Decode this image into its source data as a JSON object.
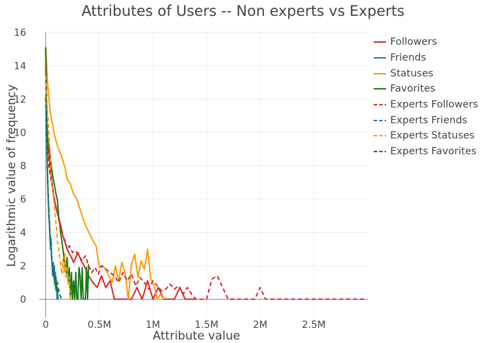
{
  "chart_data": {
    "type": "line",
    "title": "Attributes of Users -- Non experts vs Experts",
    "xlabel": "Attribute value",
    "ylabel": "Logarithmic value of frequency",
    "xlim": [
      -60000,
      3000000
    ],
    "ylim": [
      -1.1,
      16
    ],
    "xticks": [
      0,
      500000,
      1000000,
      1500000,
      2000000,
      2500000
    ],
    "xtick_labels": [
      "0",
      "0.5M",
      "1M",
      "1.5M",
      "2M",
      "2.5M"
    ],
    "yticks": [
      0,
      2,
      4,
      6,
      8,
      10,
      12,
      14,
      16
    ],
    "ytick_labels": [
      "0",
      "2",
      "4",
      "6",
      "8",
      "10",
      "12",
      "14",
      "16"
    ],
    "grid": true,
    "legend_position": "right",
    "series": [
      {
        "name": "Followers",
        "color": "#d62728",
        "dash": "solid",
        "x": [
          0,
          10000,
          20000,
          30000,
          40000,
          50000,
          60000,
          70000,
          80000,
          90000,
          100000,
          120000,
          140000,
          160000,
          180000,
          200000,
          220000,
          240000,
          260000,
          280000,
          300000,
          330000,
          360000,
          400000,
          440000,
          480000,
          520000,
          560000,
          600000,
          640000,
          680000,
          720000,
          760000,
          800000,
          850000,
          900000,
          950000,
          1000000,
          1050000,
          1100000,
          1150000,
          1200000,
          1250000,
          1300000,
          1350000,
          1400000
        ],
        "y": [
          15.1,
          10.5,
          9.3,
          8.7,
          8.0,
          7.4,
          6.9,
          6.4,
          6.0,
          5.7,
          5.4,
          4.9,
          4.4,
          3.8,
          3.4,
          3.0,
          2.7,
          2.5,
          2.2,
          2.5,
          2.8,
          2.3,
          2.0,
          1.4,
          1.0,
          0.7,
          1.4,
          0.7,
          1.1,
          0.0,
          0.0,
          0.0,
          0.0,
          0.0,
          0.7,
          0.0,
          1.1,
          0.0,
          0.7,
          0.0,
          0.0,
          0.0,
          0.7,
          0.0,
          0.0,
          0.0
        ]
      },
      {
        "name": "Friends",
        "color": "#1f77b4",
        "dash": "solid",
        "x": [
          0,
          5000,
          10000,
          15000,
          20000,
          25000,
          30000,
          35000,
          40000,
          45000,
          50000,
          55000,
          60000,
          65000,
          70000,
          75000,
          80000,
          85000,
          90000,
          95000,
          100000,
          105000,
          110000,
          115000,
          120000
        ],
        "y": [
          15.1,
          12.0,
          9.6,
          8.0,
          6.8,
          5.8,
          5.0,
          4.4,
          3.6,
          3.0,
          3.6,
          2.5,
          2.0,
          1.4,
          2.2,
          1.4,
          2.0,
          1.2,
          1.6,
          0.7,
          1.1,
          0.0,
          0.7,
          0.0,
          0.0
        ]
      },
      {
        "name": "Statuses",
        "color": "#ff9900",
        "dash": "solid",
        "x": [
          0,
          20000,
          40000,
          60000,
          80000,
          100000,
          120000,
          140000,
          160000,
          180000,
          200000,
          230000,
          260000,
          290000,
          320000,
          350000,
          380000,
          410000,
          440000,
          470000,
          500000,
          530000,
          560000,
          590000,
          620000,
          650000,
          680000,
          710000,
          740000,
          770000,
          800000,
          830000,
          860000,
          890000,
          920000,
          950000,
          980000,
          1010000,
          1040000,
          1070000,
          1100000
        ],
        "y": [
          15.1,
          12.8,
          11.3,
          10.6,
          9.9,
          9.4,
          9.0,
          8.7,
          8.3,
          7.9,
          7.2,
          6.9,
          6.3,
          6.0,
          5.4,
          4.8,
          4.3,
          3.9,
          3.5,
          3.2,
          1.9,
          2.0,
          1.8,
          1.4,
          1.0,
          2.0,
          1.1,
          2.2,
          1.6,
          0.0,
          2.1,
          2.7,
          1.3,
          2.3,
          1.8,
          3.0,
          1.2,
          0.8,
          0.0,
          0.3,
          0.0
        ]
      },
      {
        "name": "Favorites",
        "color": "#1a7a1a",
        "dash": "solid",
        "x": [
          0,
          10000,
          20000,
          30000,
          40000,
          50000,
          60000,
          70000,
          80000,
          90000,
          100000,
          110000,
          120000,
          130000,
          140000,
          150000,
          160000,
          170000,
          180000,
          190000,
          200000,
          210000,
          220000,
          230000,
          240000,
          250000,
          260000,
          270000,
          280000,
          290000,
          300000,
          310000,
          320000,
          330000,
          340000,
          350000,
          360000,
          370000,
          380000,
          390000,
          400000
        ],
        "y": [
          15.1,
          10.8,
          9.5,
          9.2,
          8.6,
          8.1,
          7.6,
          7.2,
          6.9,
          6.5,
          6.2,
          5.9,
          5.0,
          4.5,
          3.9,
          3.5,
          3.0,
          2.5,
          2.0,
          1.6,
          2.5,
          1.0,
          1.9,
          0.0,
          1.6,
          0.0,
          1.1,
          0.0,
          1.6,
          0.0,
          0.0,
          1.9,
          1.4,
          0.0,
          1.9,
          0.0,
          0.0,
          0.0,
          1.9,
          0.0,
          2.1
        ]
      },
      {
        "name": "Experts Followers",
        "color": "#d62728",
        "dash": "dashed",
        "x": [
          0,
          10000,
          20000,
          30000,
          40000,
          60000,
          80000,
          100000,
          120000,
          140000,
          160000,
          180000,
          200000,
          220000,
          250000,
          280000,
          310000,
          340000,
          370000,
          400000,
          430000,
          460000,
          490000,
          520000,
          560000,
          600000,
          640000,
          680000,
          720000,
          760000,
          800000,
          840000,
          880000,
          920000,
          960000,
          1000000,
          1040000,
          1080000,
          1120000,
          1160000,
          1200000,
          1240000,
          1280000,
          1320000,
          1360000,
          1400000,
          1450000,
          1500000,
          1550000,
          1600000,
          1650000,
          1700000,
          1750000,
          1800000,
          1850000,
          1900000,
          1950000,
          2000000,
          2050000,
          2100000,
          2200000,
          2400000,
          2600000,
          2800000,
          3000000
        ],
        "y": [
          13.9,
          10.5,
          9.0,
          8.0,
          7.5,
          6.8,
          6.0,
          5.4,
          4.8,
          4.3,
          3.8,
          3.5,
          3.0,
          3.2,
          2.8,
          2.9,
          2.6,
          2.3,
          2.6,
          2.0,
          1.6,
          1.9,
          1.5,
          2.0,
          1.8,
          1.6,
          1.4,
          1.0,
          1.6,
          1.1,
          1.5,
          0.8,
          1.3,
          1.0,
          0.6,
          1.1,
          0.8,
          0.5,
          0.6,
          0.9,
          0.6,
          0.8,
          0.3,
          0.7,
          0.3,
          0.0,
          0.0,
          0.0,
          1.2,
          1.4,
          0.7,
          0.0,
          0.0,
          0.0,
          0.0,
          0.0,
          0.0,
          0.7,
          0.0,
          0.0,
          0.0,
          0.0,
          0.0,
          0.0,
          0.0
        ]
      },
      {
        "name": "Experts Friends",
        "color": "#1f77b4",
        "dash": "dashed",
        "x": [
          0,
          5000,
          10000,
          15000,
          20000,
          25000,
          30000,
          35000,
          40000,
          45000,
          50000,
          55000,
          60000,
          65000,
          70000,
          75000,
          80000,
          85000,
          90000,
          95000,
          100000,
          105000,
          110000,
          115000,
          120000
        ],
        "y": [
          13.5,
          11.4,
          9.6,
          8.0,
          6.7,
          5.6,
          4.9,
          4.2,
          3.6,
          3.2,
          2.8,
          2.4,
          2.1,
          1.8,
          1.6,
          1.3,
          1.1,
          0.9,
          0.7,
          0.6,
          0.4,
          0.3,
          0.2,
          0.1,
          0.0
        ]
      },
      {
        "name": "Experts Statuses",
        "color": "#ff9900",
        "dash": "dashed",
        "x": [
          0,
          10000,
          20000,
          30000,
          40000,
          50000,
          60000,
          70000,
          80000,
          90000,
          100000,
          110000,
          120000,
          130000,
          140000,
          150000,
          160000,
          170000,
          180000,
          190000,
          200000,
          210000,
          220000,
          230000
        ],
        "y": [
          13.4,
          11.9,
          11.0,
          9.8,
          8.9,
          7.5,
          6.7,
          6.3,
          5.6,
          4.9,
          4.3,
          3.4,
          3.0,
          2.5,
          2.1,
          1.5,
          2.4,
          1.6,
          2.8,
          1.2,
          2.0,
          0.9,
          1.3,
          0.0
        ]
      },
      {
        "name": "Experts Favorites",
        "color": "#1a7a1a",
        "dash": "dashed",
        "x": [
          0,
          5000,
          10000,
          15000,
          20000,
          25000,
          30000,
          35000,
          40000,
          45000,
          50000,
          55000,
          60000,
          65000,
          70000,
          75000,
          80000,
          85000,
          90000,
          95000,
          100000,
          105000,
          110000,
          115000,
          120000,
          130000,
          140000,
          150000
        ],
        "y": [
          12.1,
          10.2,
          8.9,
          7.8,
          6.9,
          6.0,
          5.3,
          4.6,
          4.0,
          3.5,
          3.1,
          2.7,
          2.3,
          2.0,
          1.7,
          1.5,
          1.2,
          1.0,
          0.8,
          1.4,
          0.7,
          0.5,
          1.0,
          0.4,
          0.6,
          0.3,
          0.1,
          0.0
        ]
      }
    ]
  }
}
